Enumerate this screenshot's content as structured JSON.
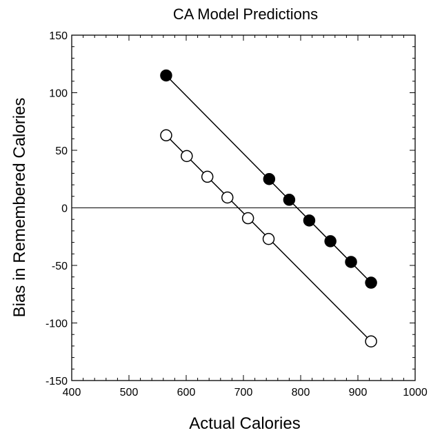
{
  "chart_data": {
    "type": "scatter",
    "title": "CA Model Predictions",
    "xlabel": "Actual Calories",
    "ylabel": "Bias in Remembered Calories",
    "xlim": [
      400,
      1000
    ],
    "ylim": [
      -150,
      150
    ],
    "x_ticks": [
      400,
      500,
      600,
      700,
      800,
      900,
      1000
    ],
    "y_ticks": [
      -150,
      -100,
      -50,
      0,
      50,
      100,
      150
    ],
    "x_minor_step": 20,
    "y_minor_step": 10,
    "grid": false,
    "reference_line_y": 0,
    "series": [
      {
        "marker": "filled-circle",
        "color": "#000000",
        "x": [
          565,
          745,
          780,
          815,
          852,
          888,
          923
        ],
        "y": [
          115,
          25,
          7,
          -11,
          -29,
          -47,
          -65
        ]
      },
      {
        "marker": "open-circle",
        "color": "#000000",
        "x": [
          565,
          601,
          637,
          672,
          708,
          744,
          923
        ],
        "y": [
          63,
          45,
          27,
          9,
          -9,
          -27,
          -116
        ]
      }
    ]
  }
}
